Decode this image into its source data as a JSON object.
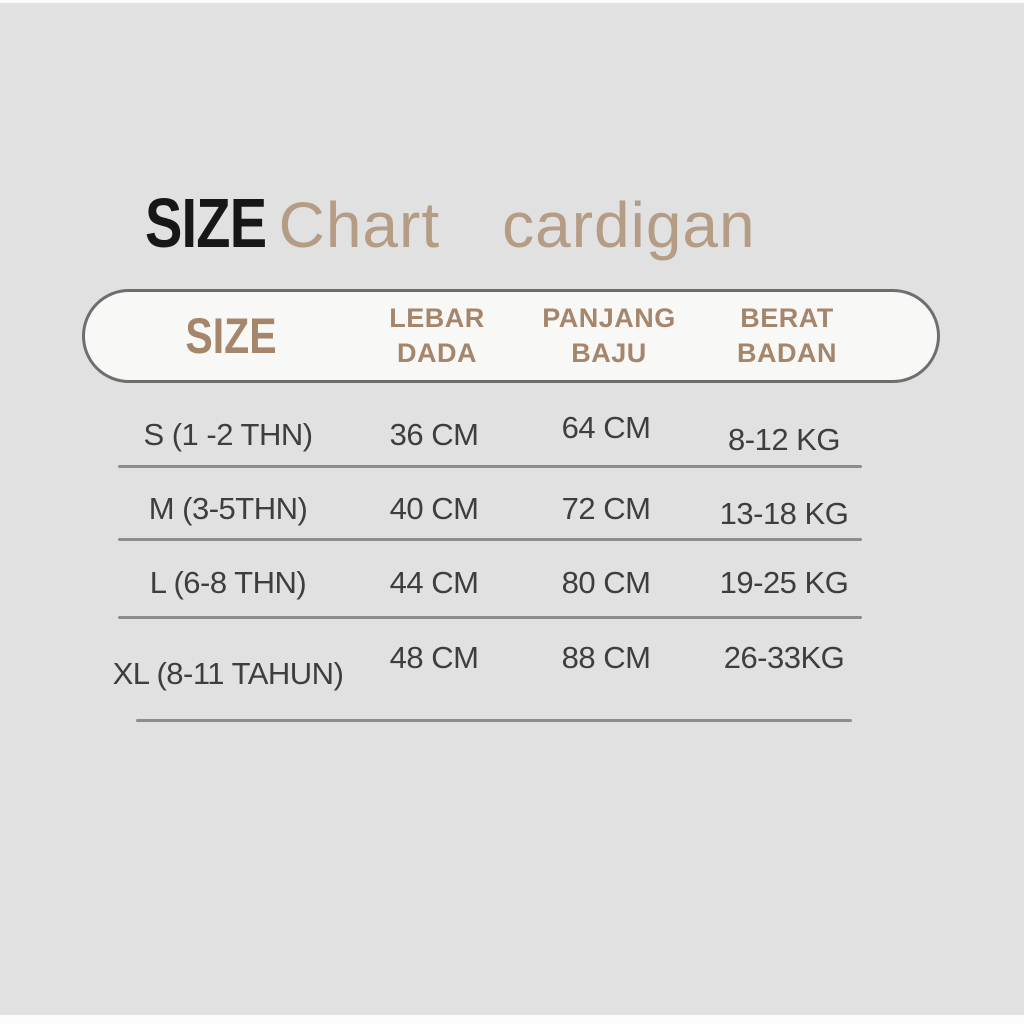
{
  "title": {
    "word1": "SIZE",
    "word2": "Chart",
    "word3": "cardigan"
  },
  "header": {
    "size_label": "SIZE",
    "columns": [
      {
        "line1": "LEBAR",
        "line2": "DADA"
      },
      {
        "line1": "PANJANG",
        "line2": "BAJU"
      },
      {
        "line1": "BERAT",
        "line2": "BADAN"
      }
    ]
  },
  "table": {
    "rows": [
      {
        "size": "S (1 -2 THN)",
        "lebar_dada": "36 CM",
        "panjang_baju": "64 CM",
        "berat_badan": "8-12 KG"
      },
      {
        "size": "M (3-5THN)",
        "lebar_dada": "40 CM",
        "panjang_baju": "72 CM",
        "berat_badan": "13-18 KG"
      },
      {
        "size": "L (6-8 THN)",
        "lebar_dada": "44 CM",
        "panjang_baju": "80 CM",
        "berat_badan": "19-25 KG"
      },
      {
        "size": "XL (8-11 TAHUN)",
        "lebar_dada": "48 CM",
        "panjang_baju": "88 CM",
        "berat_badan": "26-33KG"
      }
    ]
  },
  "chart_data": {
    "type": "table",
    "title": "SIZE Chart cardigan",
    "columns": [
      "SIZE",
      "LEBAR DADA",
      "PANJANG BAJU",
      "BERAT BADAN"
    ],
    "rows": [
      [
        "S (1 -2 THN)",
        "36 CM",
        "64 CM",
        "8-12 KG"
      ],
      [
        "M (3-5THN)",
        "40 CM",
        "72 CM",
        "13-18 KG"
      ],
      [
        "L (6-8 THN)",
        "44 CM",
        "80 CM",
        "19-25 KG"
      ],
      [
        "XL (8-11 TAHUN)",
        "48 CM",
        "88 CM",
        "26-33KG"
      ]
    ]
  },
  "colors": {
    "background": "#e1e1e1",
    "title_black": "#171717",
    "title_tan": "#b49c85",
    "header_tan": "#a5866b",
    "row_text": "#3e3e3e",
    "pill_fill": "#f8f8f6",
    "pill_border": "#6e6e6e",
    "divider": "#8d8d8d"
  }
}
